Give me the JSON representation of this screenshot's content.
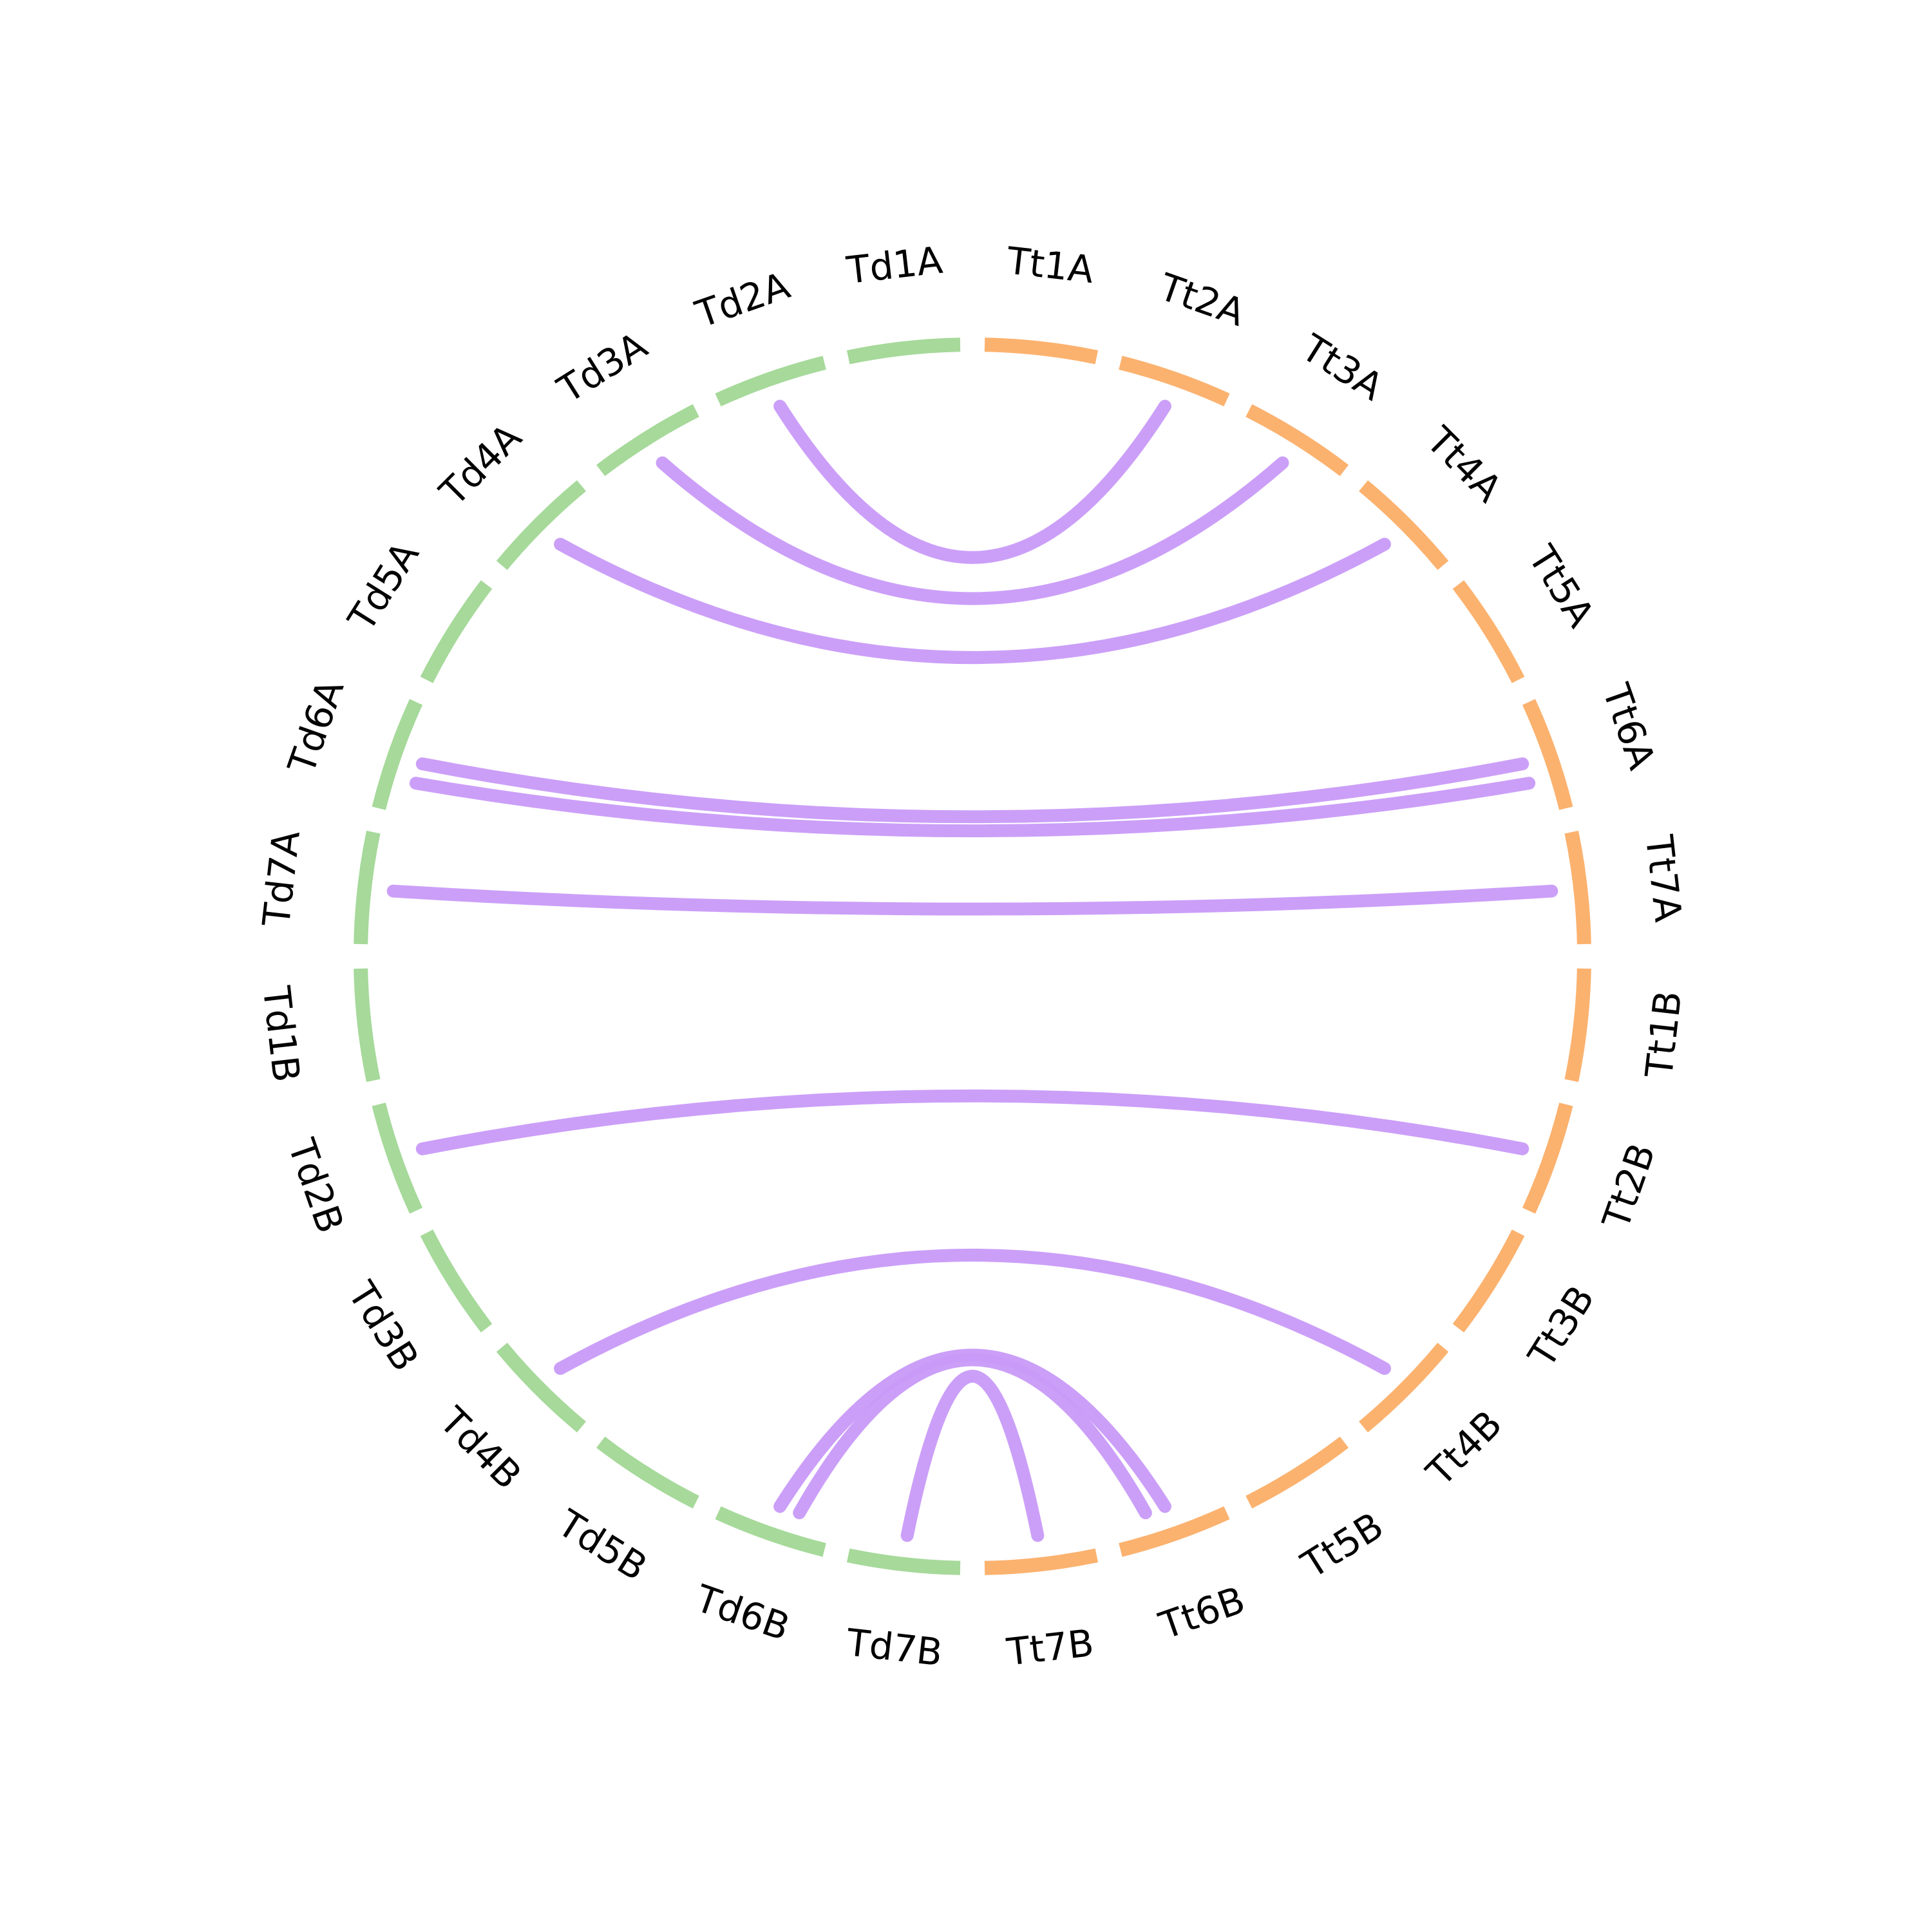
{
  "colors": {
    "group_td": "#a6d99a",
    "group_tt": "#fbb26f",
    "link": "#c89af8",
    "label": "#000000",
    "background": "#ffffff"
  },
  "segments": [
    {
      "id": "Td1A",
      "label": "Td1A",
      "group": "td"
    },
    {
      "id": "Td2A",
      "label": "Td2A",
      "group": "td"
    },
    {
      "id": "Td3A",
      "label": "Td3A",
      "group": "td"
    },
    {
      "id": "Td4A",
      "label": "Td4A",
      "group": "td"
    },
    {
      "id": "Td5A",
      "label": "Td5A",
      "group": "td"
    },
    {
      "id": "Td6A",
      "label": "Td6A",
      "group": "td"
    },
    {
      "id": "Td7A",
      "label": "Td7A",
      "group": "td"
    },
    {
      "id": "Td1B",
      "label": "Td1B",
      "group": "td"
    },
    {
      "id": "Td2B",
      "label": "Td2B",
      "group": "td"
    },
    {
      "id": "Td3B",
      "label": "Td3B",
      "group": "td"
    },
    {
      "id": "Td4B",
      "label": "Td4B",
      "group": "td"
    },
    {
      "id": "Td5B",
      "label": "Td5B",
      "group": "td"
    },
    {
      "id": "Td6B",
      "label": "Td6B",
      "group": "td"
    },
    {
      "id": "Td7B",
      "label": "Td7B",
      "group": "td"
    },
    {
      "id": "Tt1A",
      "label": "Tt1A",
      "group": "tt"
    },
    {
      "id": "Tt2A",
      "label": "Tt2A",
      "group": "tt"
    },
    {
      "id": "Tt3A",
      "label": "Tt3A",
      "group": "tt"
    },
    {
      "id": "Tt4A",
      "label": "Tt4A",
      "group": "tt"
    },
    {
      "id": "Tt5A",
      "label": "Tt5A",
      "group": "tt"
    },
    {
      "id": "Tt6A",
      "label": "Tt6A",
      "group": "tt"
    },
    {
      "id": "Tt7A",
      "label": "Tt7A",
      "group": "tt"
    },
    {
      "id": "Tt1B",
      "label": "Tt1B",
      "group": "tt"
    },
    {
      "id": "Tt2B",
      "label": "Tt2B",
      "group": "tt"
    },
    {
      "id": "Tt3B",
      "label": "Tt3B",
      "group": "tt"
    },
    {
      "id": "Tt4B",
      "label": "Tt4B",
      "group": "tt"
    },
    {
      "id": "Tt5B",
      "label": "Tt5B",
      "group": "tt"
    },
    {
      "id": "Tt6B",
      "label": "Tt6B",
      "group": "tt"
    },
    {
      "id": "Tt7B",
      "label": "Tt7B",
      "group": "tt"
    }
  ],
  "links": [
    {
      "from": "Td2A",
      "to": "Tt2A"
    },
    {
      "from": "Td3A",
      "to": "Tt3A"
    },
    {
      "from": "Td4A",
      "to": "Tt4A"
    },
    {
      "from": "Td6A",
      "to": "Tt6A"
    },
    {
      "from": "Td6A",
      "to": "Tt6A"
    },
    {
      "from": "Td7A",
      "to": "Tt7A"
    },
    {
      "from": "Td2B",
      "to": "Tt2B"
    },
    {
      "from": "Td4B",
      "to": "Tt4B"
    },
    {
      "from": "Td6B",
      "to": "Tt6B"
    },
    {
      "from": "Td6B",
      "to": "Tt6B"
    },
    {
      "from": "Td7B",
      "to": "Tt7B"
    }
  ]
}
